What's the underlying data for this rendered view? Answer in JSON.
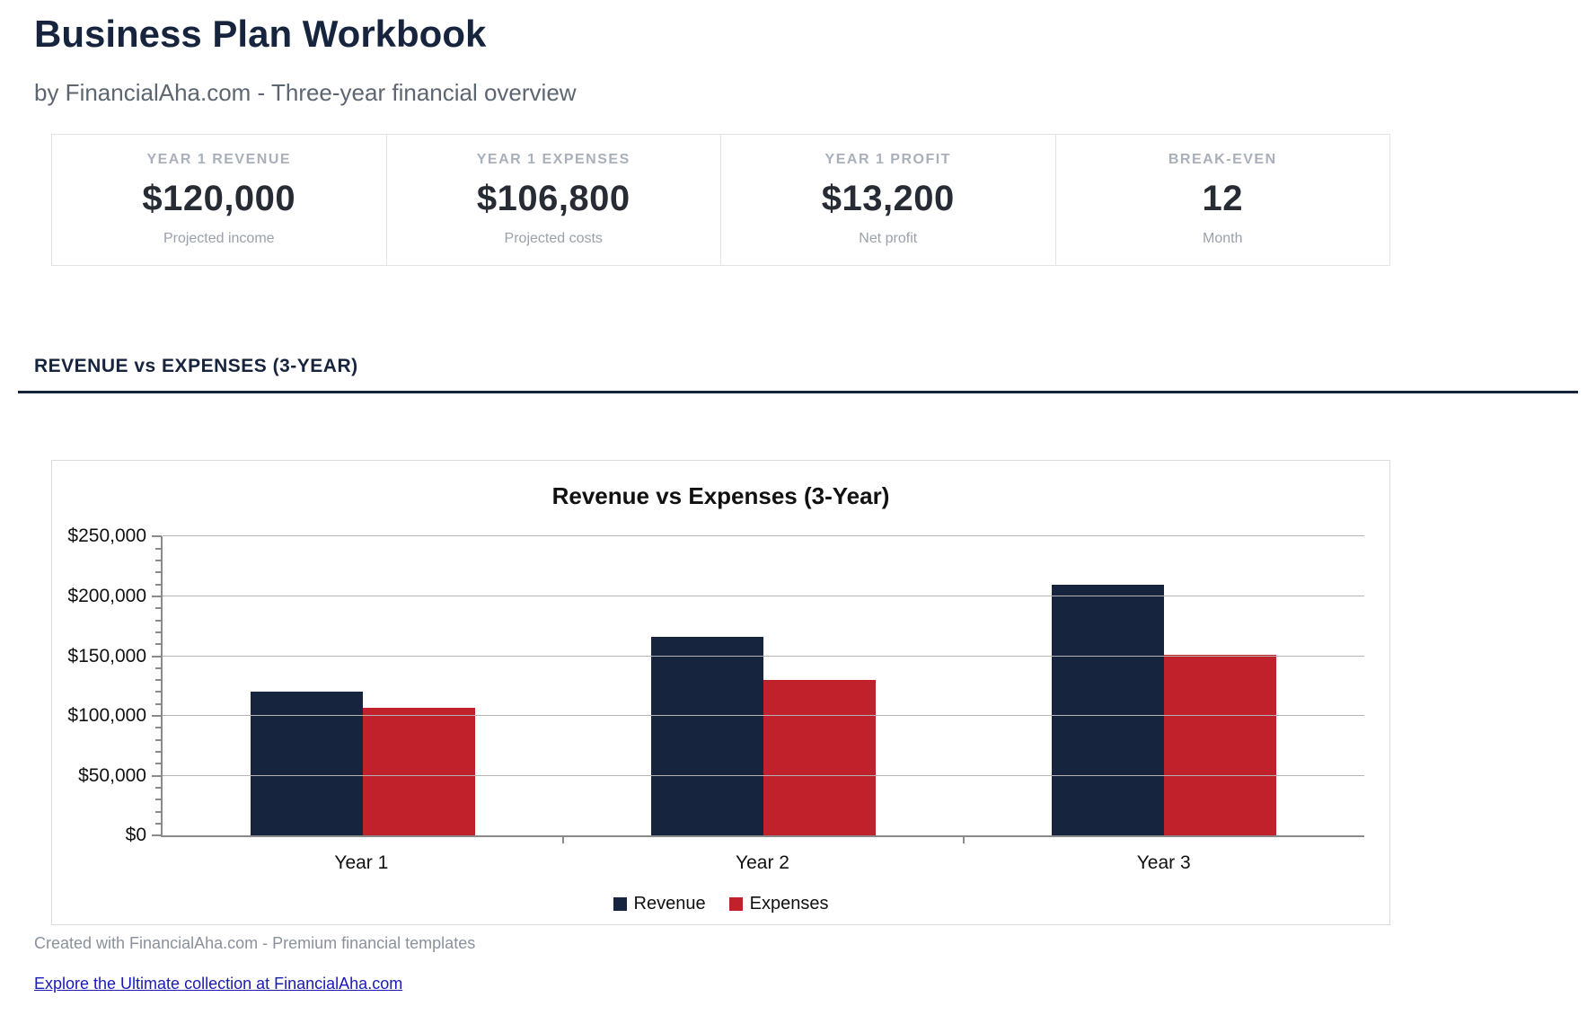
{
  "page": {
    "title": "Business Plan Workbook",
    "subtitle": "by FinancialAha.com - Three-year financial overview"
  },
  "stats": {
    "cards": [
      {
        "label": "YEAR 1 REVENUE",
        "value": "$120,000",
        "sublabel": "Projected income"
      },
      {
        "label": "YEAR 1 EXPENSES",
        "value": "$106,800",
        "sublabel": "Projected costs"
      },
      {
        "label": "YEAR 1 PROFIT",
        "value": "$13,200",
        "sublabel": "Net profit"
      },
      {
        "label": "BREAK-EVEN",
        "value": "12",
        "sublabel": "Month"
      }
    ]
  },
  "section": {
    "heading": "REVENUE vs EXPENSES (3-YEAR)"
  },
  "chart_data": {
    "type": "bar",
    "title": "Revenue vs Expenses (3-Year)",
    "categories": [
      "Year 1",
      "Year 2",
      "Year 3"
    ],
    "series": [
      {
        "name": "Revenue",
        "color": "#17243e",
        "values": [
          120000,
          166000,
          210000
        ]
      },
      {
        "name": "Expenses",
        "color": "#c1212b",
        "values": [
          106800,
          130000,
          151500
        ]
      }
    ],
    "ylim": [
      0,
      250000
    ],
    "y_major_step": 50000,
    "y_minor_step": 10000,
    "y_tick_labels": [
      "$0",
      "$50,000",
      "$100,000",
      "$150,000",
      "$200,000",
      "$250,000"
    ],
    "grid": true,
    "legend_position": "bottom"
  },
  "footer": {
    "credit": "Created with FinancialAha.com - Premium financial templates",
    "link": "Explore the Ultimate collection at FinancialAha.com"
  },
  "colors": {
    "accent_navy": "#17243e",
    "accent_red": "#c1212b",
    "muted_text": "#9aa1ab",
    "link": "#1a1ab5"
  }
}
